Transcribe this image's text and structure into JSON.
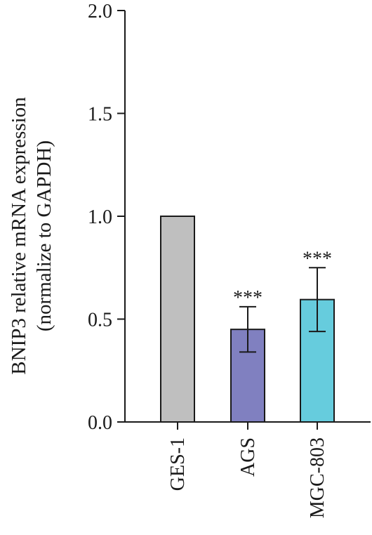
{
  "chart_data": {
    "type": "bar",
    "title": "",
    "xlabel": "",
    "ylabel_lines": [
      "BNIP3 relative mRNA expression",
      "(normalize to GAPDH)"
    ],
    "ylim": [
      0,
      2.0
    ],
    "yticks": [
      0.0,
      0.5,
      1.0,
      1.5,
      2.0
    ],
    "ytick_labels": [
      "0.0",
      "0.5",
      "1.0",
      "1.5",
      "2.0"
    ],
    "categories": [
      "GES-1",
      "AGS",
      "MGC-803"
    ],
    "values": [
      1.0,
      0.45,
      0.595
    ],
    "errors": [
      0,
      0.11,
      0.155
    ],
    "significance": [
      "",
      "***",
      "***"
    ],
    "colors": [
      "#bfbfbf",
      "#8080c0",
      "#66ccdd"
    ],
    "grid": false,
    "legend": "none"
  }
}
